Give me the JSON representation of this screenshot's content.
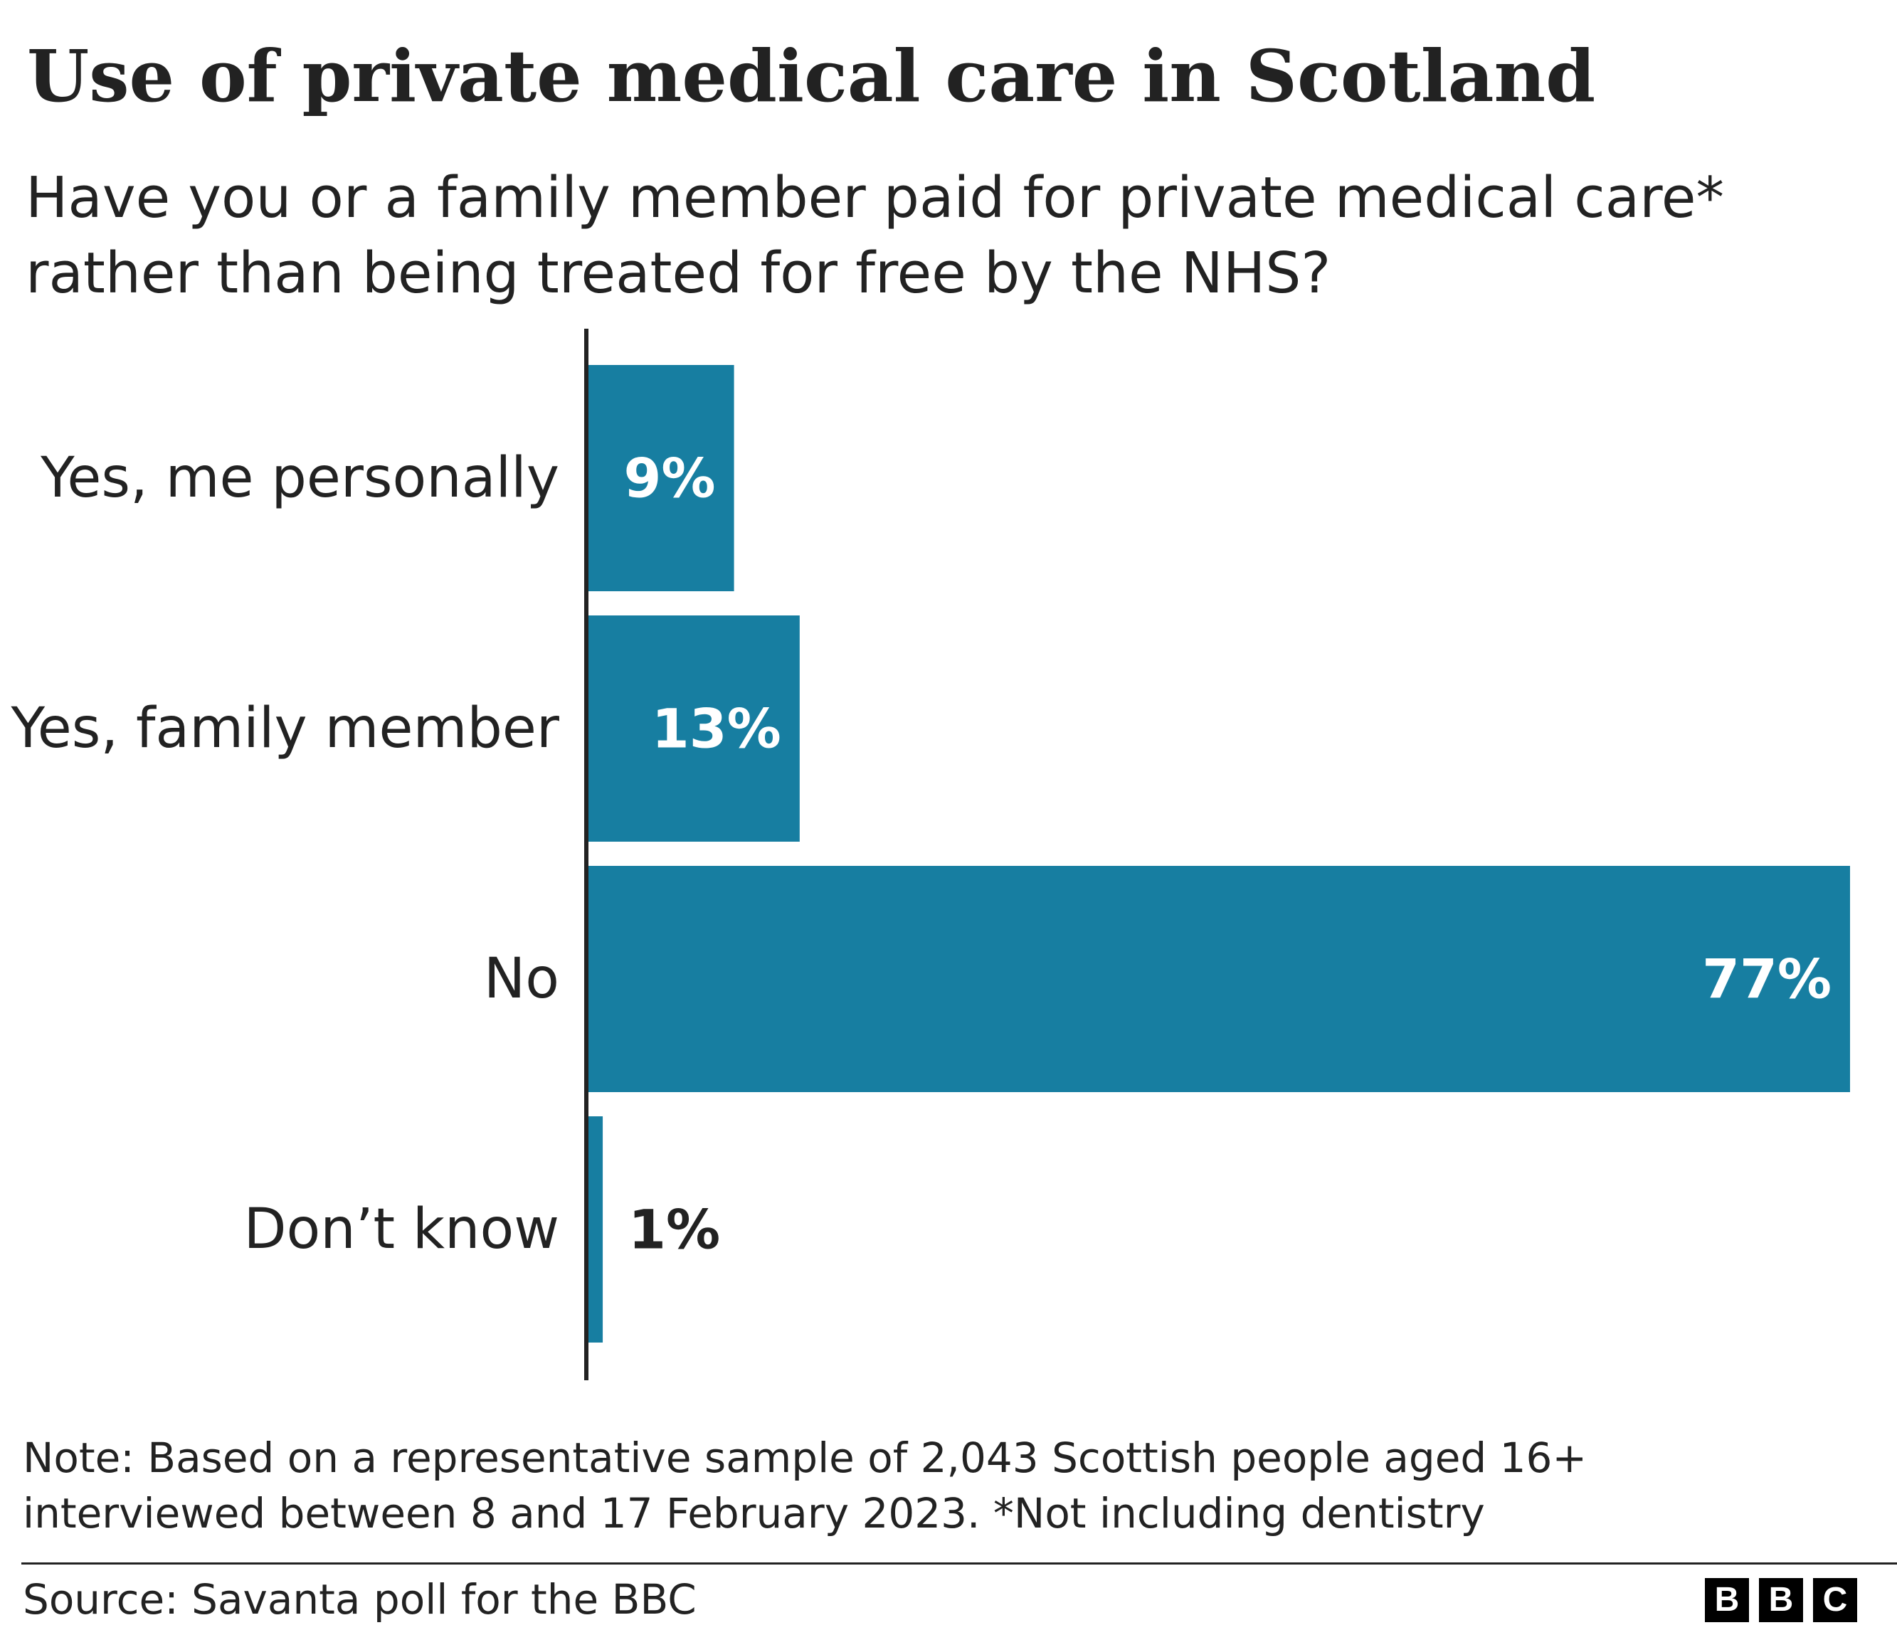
{
  "header": {
    "title": "Use of private medical care in Scotland",
    "subtitle_lines": [
      "Have you or a family member paid for private medical care*",
      "rather than being treated for free by the NHS?"
    ]
  },
  "chart_data": {
    "type": "bar",
    "orientation": "horizontal",
    "categories": [
      "Yes, me personally",
      "Yes, family member",
      "No",
      "Don’t know"
    ],
    "values": [
      9,
      13,
      77,
      1
    ],
    "data_labels": [
      "9%",
      "13%",
      "77%",
      "1%"
    ],
    "xlim": [
      0,
      77
    ],
    "grid": false,
    "legend": "none",
    "bar_color": "#177ea1"
  },
  "footer": {
    "note_lines": [
      "Note: Based on a representative sample of 2,043 Scottish people aged 16+",
      "interviewed between 8 and 17 February 2023. *Not including dentistry"
    ],
    "source": "Source: Savanta poll for the BBC",
    "logo_letters": [
      "B",
      "B",
      "C"
    ]
  },
  "colors": {
    "bar": "#177ea1",
    "text": "#222222",
    "label_inside": "#ffffff",
    "axis": "#222222"
  }
}
